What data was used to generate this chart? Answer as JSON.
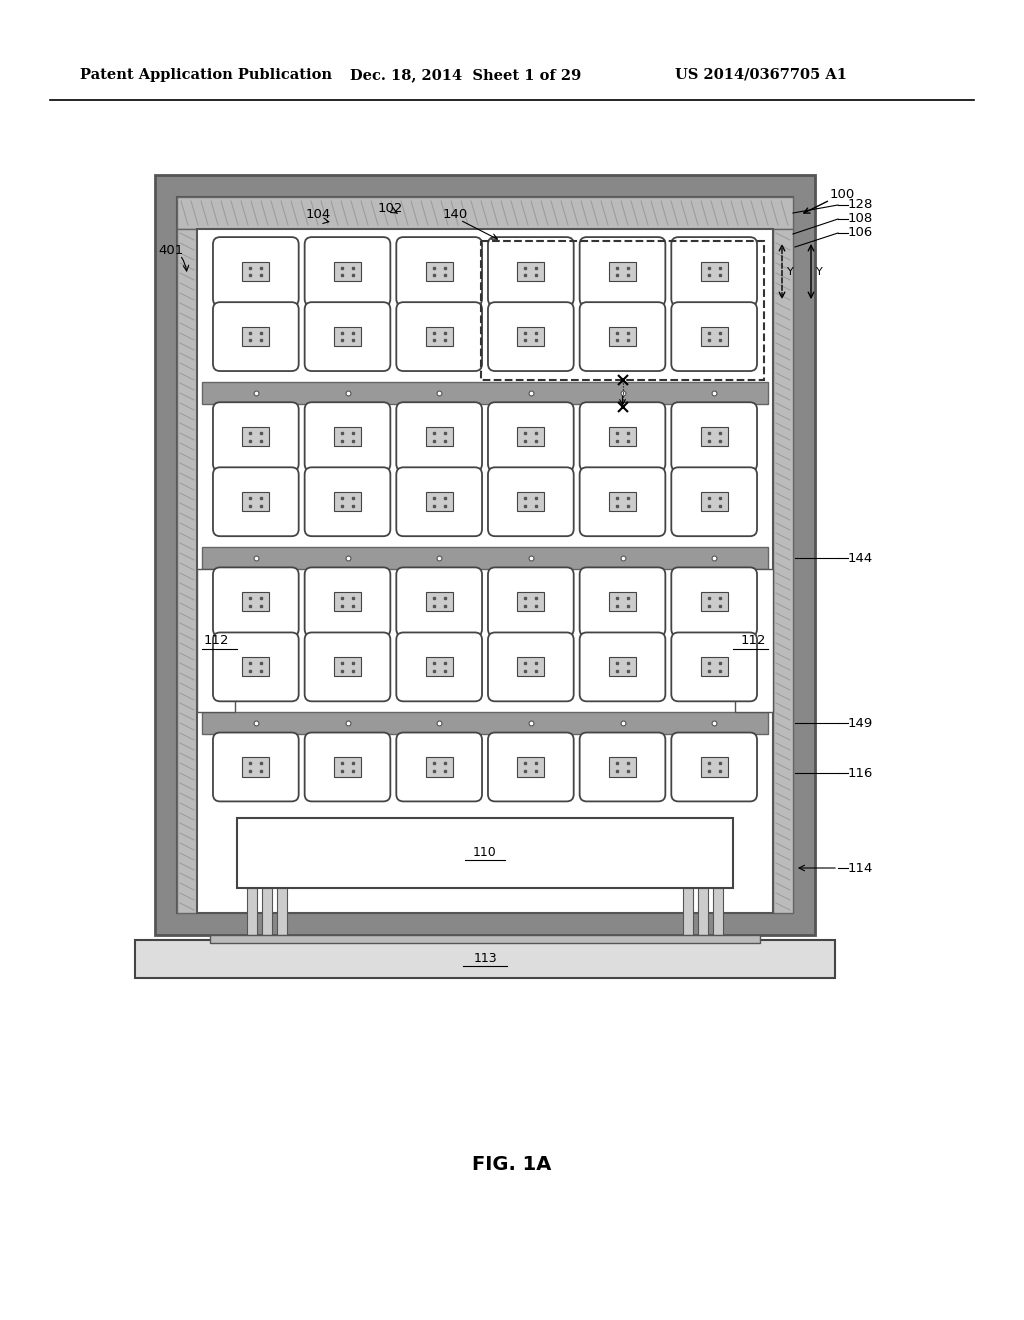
{
  "title_left": "Patent Application Publication",
  "title_mid": "Dec. 18, 2014  Sheet 1 of 29",
  "title_right": "US 2014/0367705 A1",
  "fig_label": "FIG. 1A",
  "bg_color": "#ffffff",
  "gray_frame": "#aaaaaa",
  "gray_dark": "#888888",
  "gray_light": "#cccccc",
  "gray_med": "#bbbbbb",
  "sep_color": "#999999",
  "led_fill": "#f0f0f0",
  "led_edge": "#444444",
  "inner_sq_fill": "#888888",
  "inner_sq_edge": "#333333"
}
